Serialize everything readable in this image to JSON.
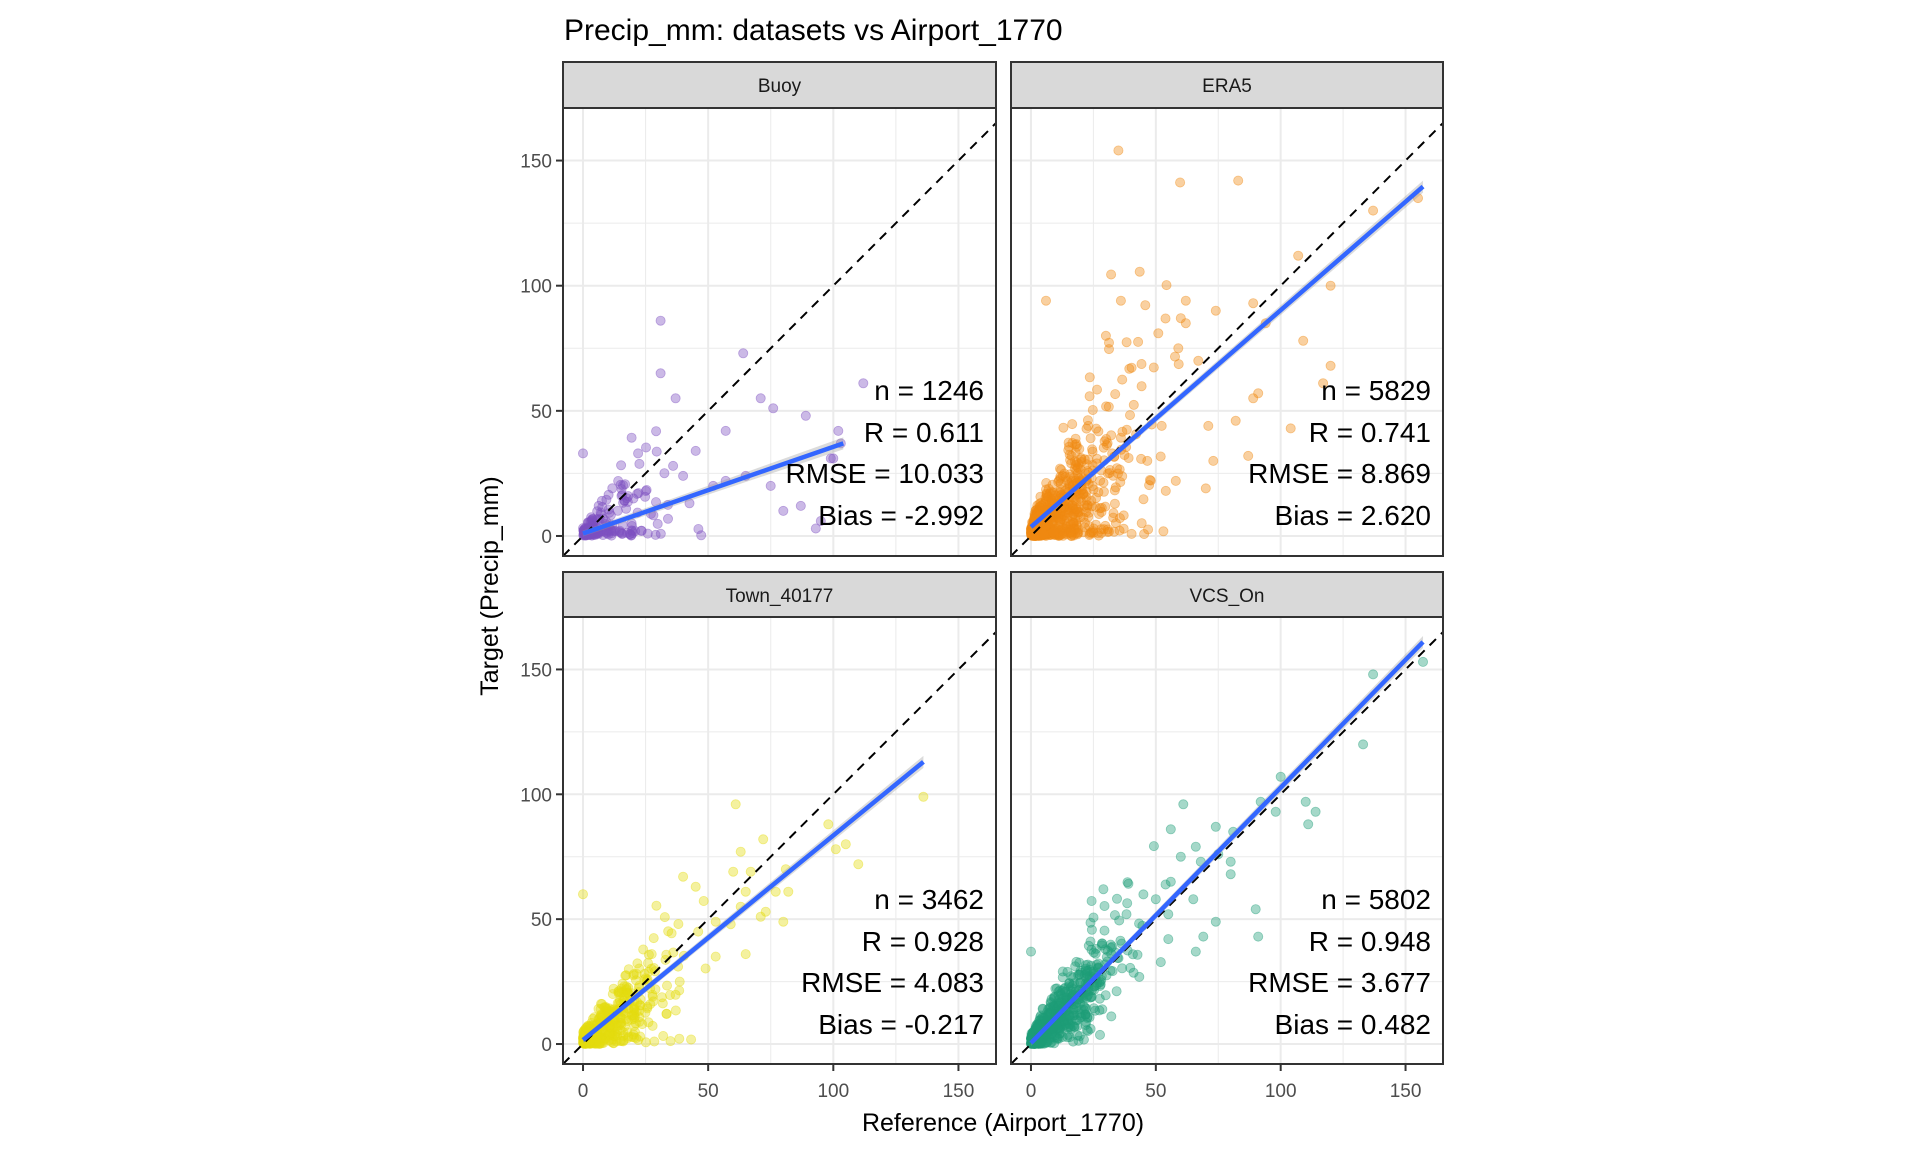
{
  "chart_data": {
    "type": "scatter",
    "title": "Precip_mm: datasets vs Airport_1770",
    "xlabel": "Reference (Airport_1770)",
    "ylabel": "Target (Precip_mm)",
    "xlim": [
      -8,
      165
    ],
    "ylim": [
      -8,
      171
    ],
    "x_ticks": [
      0,
      50,
      100,
      150
    ],
    "y_ticks": [
      0,
      50,
      100,
      150
    ],
    "x_tick_labels": [
      "0",
      "50",
      "100",
      "150"
    ],
    "y_tick_labels": [
      "0",
      "50",
      "100",
      "150"
    ],
    "grid": true,
    "reference_line": "y = x (dashed)",
    "facet_layout": "2x2",
    "panels": [
      {
        "name": "Buoy",
        "color": "#7E4FC1",
        "stats": {
          "n": 1246,
          "R": 0.611,
          "RMSE": 10.033,
          "Bias": -2.992
        },
        "stat_labels": [
          "n = 1246",
          "R = 0.611",
          "RMSE = 10.033",
          "Bias = -2.992"
        ],
        "fit_line": {
          "x": [
            0,
            104
          ],
          "y": [
            1,
            37
          ]
        },
        "cluster": {
          "xmax": 40,
          "spread": 0.55,
          "slope": 0.33
        },
        "outliers": [
          [
            31,
            86
          ],
          [
            64,
            73
          ],
          [
            71,
            55
          ],
          [
            89,
            48
          ],
          [
            57,
            42
          ],
          [
            76,
            51
          ],
          [
            31,
            65
          ],
          [
            37,
            55
          ],
          [
            112,
            61
          ],
          [
            22,
            33
          ],
          [
            45,
            34
          ],
          [
            36,
            28
          ],
          [
            40,
            24
          ],
          [
            0,
            33
          ],
          [
            65,
            24
          ],
          [
            100,
            31
          ],
          [
            75,
            20
          ],
          [
            87,
            12
          ],
          [
            80,
            10
          ],
          [
            102,
            42
          ],
          [
            103,
            37
          ],
          [
            95,
            6
          ],
          [
            93,
            3
          ],
          [
            57,
            22
          ],
          [
            52,
            20
          ],
          [
            99,
            31
          ]
        ]
      },
      {
        "name": "ERA5",
        "color": "#EF8A11",
        "stats": {
          "n": 5829,
          "R": 0.741,
          "RMSE": 8.869,
          "Bias": 2.62
        },
        "stat_labels": [
          "n = 5829",
          "R = 0.741",
          "RMSE = 8.869",
          "Bias = 2.620"
        ],
        "fit_line": {
          "x": [
            0,
            157
          ],
          "y": [
            3.6,
            139.6
          ]
        },
        "cluster": {
          "xmax": 55,
          "spread": 0.75,
          "slope": 0.87
        },
        "outliers": [
          [
            35,
            154
          ],
          [
            83,
            142
          ],
          [
            155,
            135
          ],
          [
            137,
            130
          ],
          [
            107,
            112
          ],
          [
            120,
            100
          ],
          [
            62,
            94
          ],
          [
            89,
            93
          ],
          [
            36,
            94
          ],
          [
            6,
            94
          ],
          [
            60,
            87
          ],
          [
            62,
            85
          ],
          [
            74,
            90
          ],
          [
            94,
            85
          ],
          [
            120,
            68
          ],
          [
            51,
            81
          ],
          [
            30,
            80
          ],
          [
            59,
            75
          ],
          [
            67,
            70
          ],
          [
            109,
            78
          ],
          [
            117,
            61
          ],
          [
            91,
            57
          ],
          [
            82,
            46
          ],
          [
            104,
            43
          ],
          [
            89,
            55
          ],
          [
            71,
            44
          ],
          [
            87,
            32
          ],
          [
            73,
            30
          ],
          [
            70,
            19
          ],
          [
            54,
            18
          ],
          [
            58,
            22
          ]
        ]
      },
      {
        "name": "Town_40177",
        "color": "#E4DC10",
        "stats": {
          "n": 3462,
          "R": 0.928,
          "RMSE": 4.083,
          "Bias": -0.217
        },
        "stat_labels": [
          "n = 3462",
          "R = 0.928",
          "RMSE = 4.083",
          "Bias = -0.217"
        ],
        "fit_line": {
          "x": [
            0,
            136
          ],
          "y": [
            1.6,
            113
          ]
        },
        "cluster": {
          "xmax": 45,
          "spread": 0.35,
          "slope": 0.82
        },
        "outliers": [
          [
            136,
            99
          ],
          [
            61,
            96
          ],
          [
            98,
            88
          ],
          [
            72,
            82
          ],
          [
            101,
            78
          ],
          [
            105,
            80
          ],
          [
            110,
            72
          ],
          [
            63,
            77
          ],
          [
            60,
            69
          ],
          [
            81,
            70
          ],
          [
            67,
            69
          ],
          [
            40,
            67
          ],
          [
            45,
            63
          ],
          [
            65,
            61
          ],
          [
            77,
            61
          ],
          [
            82,
            61
          ],
          [
            0,
            60
          ],
          [
            63,
            55
          ],
          [
            73,
            53
          ],
          [
            65,
            36
          ],
          [
            59,
            48
          ],
          [
            46,
            45
          ],
          [
            53,
            35
          ],
          [
            38,
            31
          ],
          [
            80,
            49
          ],
          [
            71,
            51
          ],
          [
            53,
            49
          ]
        ]
      },
      {
        "name": "VCS_On",
        "color": "#1F9E78",
        "stats": {
          "n": 5802,
          "R": 0.948,
          "RMSE": 3.677,
          "Bias": 0.482
        },
        "stat_labels": [
          "n = 5802",
          "R = 0.948",
          "RMSE = 3.677",
          "Bias = 0.482"
        ],
        "fit_line": {
          "x": [
            0,
            157
          ],
          "y": [
            0.4,
            161
          ]
        },
        "cluster": {
          "xmax": 50,
          "spread": 0.3,
          "slope": 1.02
        },
        "outliers": [
          [
            157,
            153
          ],
          [
            137,
            148
          ],
          [
            133,
            120
          ],
          [
            100,
            107
          ],
          [
            92,
            97
          ],
          [
            110,
            97
          ],
          [
            98,
            93
          ],
          [
            74,
            87
          ],
          [
            114,
            93
          ],
          [
            111,
            88
          ],
          [
            61,
            96
          ],
          [
            81,
            85
          ],
          [
            56,
            86
          ],
          [
            66,
            79
          ],
          [
            60,
            75
          ],
          [
            68,
            73
          ],
          [
            75,
            76
          ],
          [
            80,
            73
          ],
          [
            80,
            68
          ],
          [
            56,
            65
          ],
          [
            65,
            58
          ],
          [
            50,
            58
          ],
          [
            29,
            62
          ],
          [
            74,
            49
          ],
          [
            55,
            52
          ],
          [
            90,
            54
          ],
          [
            91,
            43
          ],
          [
            69,
            43
          ],
          [
            55,
            42
          ],
          [
            66,
            37
          ],
          [
            0,
            37
          ]
        ]
      }
    ]
  }
}
